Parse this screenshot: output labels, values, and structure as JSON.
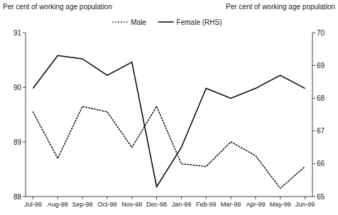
{
  "chart_data": {
    "type": "line",
    "categories": [
      "Jul-98",
      "Aug-98",
      "Sep-98",
      "Oct-98",
      "Nov-98",
      "Dec-98",
      "Jan-99",
      "Feb-99",
      "Mar-99",
      "Apr-99",
      "May-99",
      "Jun-99"
    ],
    "series": [
      {
        "name": "Male",
        "color": "#000000",
        "line_style": "dotted",
        "values": [
          89.55,
          88.7,
          89.65,
          89.55,
          88.9,
          89.65,
          88.6,
          88.55,
          89.0,
          88.75,
          88.15,
          88.55
        ]
      },
      {
        "name": "Female (RHS)",
        "color": "#000000",
        "line_style": "solid",
        "axis": "y2",
        "values": [
          68.3,
          69.3,
          69.2,
          68.7,
          69.1,
          65.3,
          66.5,
          68.3,
          68.0,
          68.3,
          68.7,
          68.3
        ]
      }
    ],
    "ylabel": "Per cent of working age population",
    "y2label": "Per cent of working age population",
    "ylim": [
      88,
      91
    ],
    "yticks": [
      88,
      89,
      90,
      91
    ],
    "y2lim": [
      65,
      70
    ],
    "y2ticks": [
      65,
      66,
      67,
      68,
      69,
      70
    ],
    "legend": "top",
    "grid": false
  }
}
